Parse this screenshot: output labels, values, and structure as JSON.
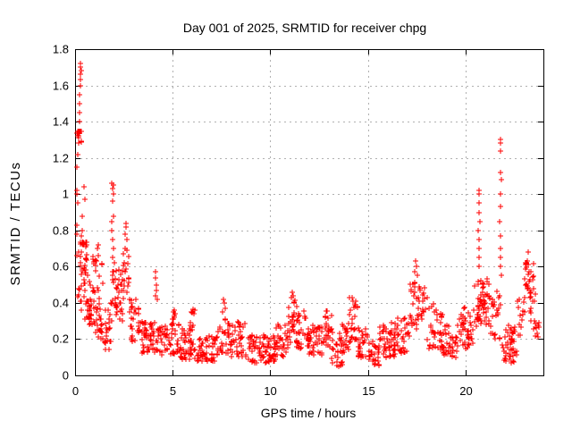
{
  "page": {
    "background": "#ffffff"
  },
  "chart_data": {
    "type": "scatter",
    "title": "Day 001 of 2025, SRMTID for receiver chpg",
    "xlabel": "GPS time / hours",
    "ylabel": "SRMTID / TECUs",
    "xlim": [
      0,
      24
    ],
    "ylim": [
      0,
      1.8
    ],
    "xticks": {
      "values": [
        0,
        5,
        10,
        15,
        20
      ],
      "labels": [
        "0",
        "5",
        "10",
        "15",
        "20"
      ]
    },
    "yticks": {
      "values": [
        0,
        0.2,
        0.4,
        0.6,
        0.8,
        1.0,
        1.2,
        1.4,
        1.6,
        1.8
      ],
      "labels": [
        "0",
        "0.2",
        "0.4",
        "0.6",
        "0.8",
        "1",
        "1.2",
        "1.4",
        "1.6",
        "1.8"
      ]
    },
    "grid": true,
    "legend_position": "none",
    "marker": {
      "shape": "plus",
      "color": "#ff0000",
      "size": 7
    },
    "series": [
      {
        "name": "SRMTID",
        "seed": 20250101,
        "points": [
          [
            0.07,
            0.78
          ],
          [
            0.08,
            0.83
          ],
          [
            0.09,
            1.0
          ],
          [
            0.1,
            1.02
          ],
          [
            0.11,
            1.15
          ],
          [
            0.12,
            0.95
          ],
          [
            0.13,
            1.22
          ],
          [
            0.22,
            1.45
          ],
          [
            0.24,
            1.4
          ],
          [
            0.24,
            1.5
          ],
          [
            0.25,
            1.55
          ],
          [
            0.26,
            1.6
          ],
          [
            0.27,
            1.63
          ],
          [
            0.27,
            1.7
          ],
          [
            0.28,
            1.66
          ],
          [
            0.29,
            1.72
          ],
          [
            0.3,
            1.68
          ],
          [
            0.33,
            0.77
          ],
          [
            0.35,
            0.88
          ],
          [
            0.38,
            0.8
          ],
          [
            0.44,
            1.04
          ],
          [
            0.5,
            0.97
          ],
          [
            1.1,
            0.63
          ],
          [
            1.15,
            0.7
          ],
          [
            1.18,
            0.66
          ],
          [
            1.2,
            0.72
          ],
          [
            1.88,
            0.8
          ],
          [
            1.9,
            0.85
          ],
          [
            1.9,
            1.06
          ],
          [
            1.91,
            0.65
          ],
          [
            1.92,
            1.03
          ],
          [
            1.93,
            0.96
          ],
          [
            1.94,
            0.75
          ],
          [
            1.95,
            1.0
          ],
          [
            1.96,
            0.88
          ],
          [
            1.97,
            1.05
          ],
          [
            1.98,
            0.7
          ],
          [
            2.0,
            0.62
          ],
          [
            2.55,
            0.7
          ],
          [
            2.58,
            0.78
          ],
          [
            2.6,
            0.84
          ],
          [
            2.62,
            0.82
          ],
          [
            2.65,
            0.75
          ],
          [
            4.1,
            0.57
          ],
          [
            4.12,
            0.54
          ],
          [
            4.13,
            0.44
          ],
          [
            4.15,
            0.5
          ],
          [
            4.18,
            0.47
          ],
          [
            4.2,
            0.42
          ],
          [
            7.55,
            0.35
          ],
          [
            7.6,
            0.42
          ],
          [
            7.65,
            0.4
          ],
          [
            7.7,
            0.37
          ],
          [
            11.1,
            0.43
          ],
          [
            11.15,
            0.46
          ],
          [
            11.18,
            0.44
          ],
          [
            14.2,
            0.43
          ],
          [
            14.25,
            0.41
          ],
          [
            17.4,
            0.57
          ],
          [
            17.45,
            0.63
          ],
          [
            17.5,
            0.6
          ],
          [
            17.55,
            0.55
          ],
          [
            20.66,
            0.8
          ],
          [
            20.68,
            0.65
          ],
          [
            20.68,
            0.95
          ],
          [
            20.7,
            0.6
          ],
          [
            20.7,
            0.75
          ],
          [
            20.7,
            0.9
          ],
          [
            20.7,
            1.02
          ],
          [
            20.72,
            0.7
          ],
          [
            20.72,
            1.0
          ],
          [
            20.74,
            0.85
          ],
          [
            21.77,
            0.85
          ],
          [
            21.78,
            0.65
          ],
          [
            21.78,
            1.24
          ],
          [
            21.79,
            1.0
          ],
          [
            21.8,
            0.6
          ],
          [
            21.8,
            0.77
          ],
          [
            21.8,
            1.12
          ],
          [
            21.8,
            1.3
          ],
          [
            21.81,
            0.93
          ],
          [
            21.82,
            0.7
          ],
          [
            21.82,
            1.28
          ],
          [
            21.83,
            0.55
          ],
          [
            21.83,
            1.08
          ],
          [
            23.2,
            0.68
          ]
        ],
        "bands": [
          [
            0.05,
            0.35,
            12,
            0.35,
            0.72,
            0.8
          ],
          [
            0.25,
            0.6,
            28,
            0.52,
            0.74,
            1.0
          ],
          [
            0.08,
            0.35,
            16,
            1.27,
            1.37,
            1.0
          ],
          [
            0.45,
            0.75,
            18,
            0.3,
            0.58,
            1.0
          ],
          [
            0.7,
            1.0,
            22,
            0.22,
            0.5,
            1.1
          ],
          [
            0.9,
            1.05,
            8,
            0.45,
            0.66,
            1.0
          ],
          [
            1.05,
            1.45,
            30,
            0.2,
            0.62,
            1.4
          ],
          [
            1.5,
            1.85,
            22,
            0.14,
            0.4,
            1.2
          ],
          [
            1.85,
            2.1,
            14,
            0.3,
            0.6,
            1.0
          ],
          [
            2.05,
            2.45,
            26,
            0.3,
            0.6,
            1.2
          ],
          [
            2.45,
            2.8,
            20,
            0.42,
            0.72,
            1.0
          ],
          [
            2.8,
            3.3,
            30,
            0.18,
            0.5,
            1.3
          ],
          [
            3.3,
            4.3,
            55,
            0.12,
            0.3,
            1.2
          ],
          [
            4.3,
            5.4,
            50,
            0.11,
            0.3,
            1.3
          ],
          [
            4.9,
            5.15,
            10,
            0.25,
            0.38,
            1.0
          ],
          [
            5.4,
            6.2,
            45,
            0.09,
            0.26,
            1.3
          ],
          [
            5.85,
            6.15,
            12,
            0.22,
            0.42,
            1.2
          ],
          [
            6.2,
            7.3,
            55,
            0.08,
            0.22,
            1.2
          ],
          [
            7.3,
            7.95,
            30,
            0.12,
            0.32,
            1.1
          ],
          [
            7.95,
            8.7,
            40,
            0.1,
            0.3,
            1.4
          ],
          [
            8.7,
            10.3,
            85,
            0.07,
            0.22,
            1.2
          ],
          [
            10.3,
            10.9,
            30,
            0.1,
            0.3,
            1.2
          ],
          [
            10.9,
            11.35,
            26,
            0.18,
            0.42,
            1.1
          ],
          [
            11.35,
            11.85,
            26,
            0.15,
            0.36,
            1.2
          ],
          [
            11.85,
            12.7,
            45,
            0.1,
            0.28,
            1.3
          ],
          [
            12.7,
            13.15,
            24,
            0.15,
            0.36,
            1.1
          ],
          [
            13.15,
            13.7,
            28,
            0.05,
            0.24,
            1.1
          ],
          [
            13.7,
            14.05,
            18,
            0.12,
            0.3,
            1.1
          ],
          [
            14.05,
            14.5,
            24,
            0.18,
            0.43,
            1.1
          ],
          [
            14.5,
            15.05,
            28,
            0.1,
            0.28,
            1.3
          ],
          [
            15.05,
            15.6,
            30,
            0.05,
            0.2,
            1.2
          ],
          [
            15.6,
            16.35,
            40,
            0.1,
            0.3,
            1.3
          ],
          [
            16.35,
            17.15,
            42,
            0.12,
            0.32,
            1.2
          ],
          [
            17.15,
            17.65,
            26,
            0.25,
            0.52,
            1.0
          ],
          [
            17.65,
            18.05,
            16,
            0.28,
            0.5,
            1.0
          ],
          [
            18.05,
            18.85,
            38,
            0.14,
            0.4,
            1.3
          ],
          [
            18.85,
            19.6,
            38,
            0.1,
            0.28,
            1.2
          ],
          [
            19.6,
            20.45,
            45,
            0.14,
            0.38,
            1.2
          ],
          [
            20.45,
            21.25,
            55,
            0.26,
            0.55,
            1.0
          ],
          [
            21.25,
            21.8,
            26,
            0.2,
            0.48,
            1.1
          ],
          [
            21.9,
            22.65,
            45,
            0.07,
            0.28,
            1.1
          ],
          [
            22.6,
            23.05,
            14,
            0.22,
            0.45,
            1.0
          ],
          [
            23.05,
            23.5,
            25,
            0.45,
            0.65,
            0.9
          ],
          [
            23.3,
            23.6,
            12,
            0.28,
            0.48,
            1.0
          ],
          [
            23.5,
            23.8,
            10,
            0.17,
            0.3,
            1.0
          ]
        ]
      }
    ]
  }
}
